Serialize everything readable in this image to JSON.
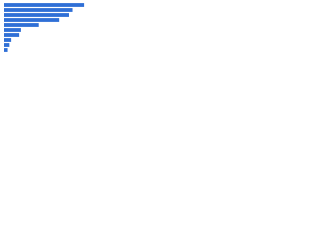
{
  "chart_data": {
    "type": "bar",
    "orientation": "horizontal",
    "categories": [
      null,
      null,
      null,
      null,
      null,
      null,
      null,
      null,
      null,
      null
    ],
    "values": [
      90,
      77,
      73,
      62,
      39,
      19,
      17,
      8,
      6,
      4
    ],
    "color": "#2f6fd6",
    "xlim": [
      0,
      100
    ]
  }
}
